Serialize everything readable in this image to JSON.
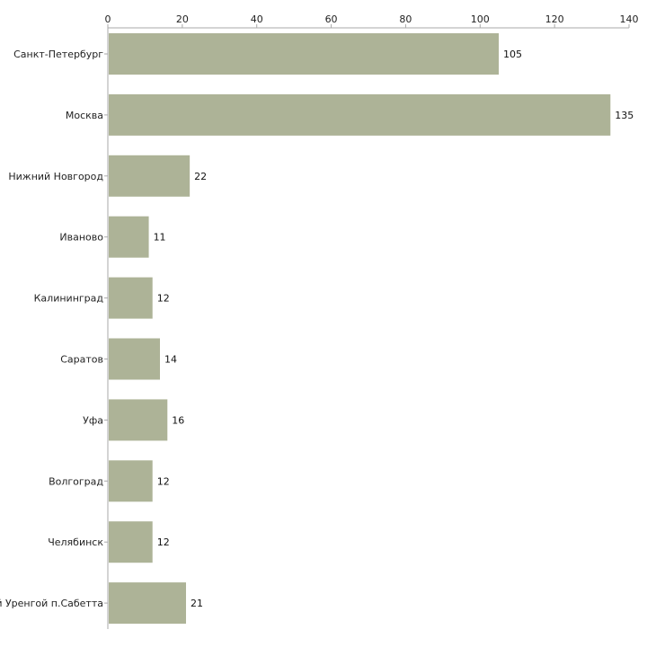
{
  "chart_data": {
    "type": "bar",
    "orientation": "horizontal",
    "title": "",
    "xlabel": "",
    "ylabel": "",
    "xlim": [
      0,
      140
    ],
    "xticks": [
      0,
      20,
      40,
      60,
      80,
      100,
      120,
      140
    ],
    "axis_position": "top",
    "grid": false,
    "categories": [
      "Санкт-Петербург",
      "Москва",
      "Нижний Новгород",
      "Иваново",
      "Калининград",
      "Саратов",
      "Уфа",
      "Волгоград",
      "Челябинск",
      "Новый Уренгой п.Сабетта"
    ],
    "values": [
      105,
      135,
      22,
      11,
      12,
      14,
      16,
      12,
      12,
      21
    ],
    "data_labels": [
      "105",
      "135",
      "22",
      "11",
      "12",
      "14",
      "16",
      "12",
      "12",
      "21"
    ],
    "bar_color": "#adb397",
    "axis_color": "#aaaaaa"
  }
}
